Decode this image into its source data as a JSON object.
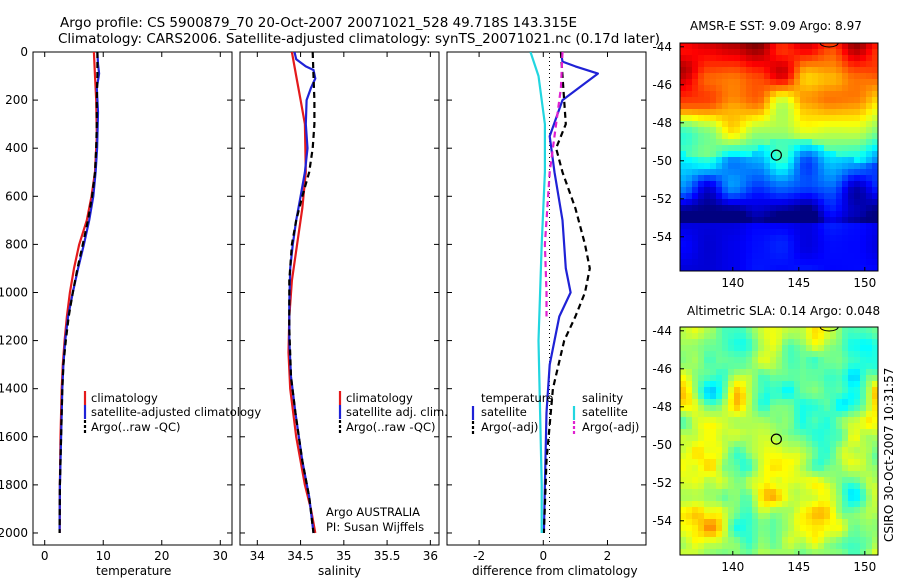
{
  "title_line1": "Argo profile: CS 5900879_70 20-Oct-2007 20071021_528 49.718S 143.315E",
  "title_line2": "Climatology: CARS2006. Satellite-adjusted climatology: synTS_20071021.nc (0.17d later)",
  "credit_line1": "Argo AUSTRALIA",
  "credit_line2": "PI: Susan Wijffels",
  "stamp": "CSIRO 30-Oct-2007 10:31:57",
  "colors": {
    "climatology": "#e41a1c",
    "satellite": "#1f22d6",
    "argo": "#000000",
    "salinity_satellite": "#22d6e0",
    "salinity_argo": "#e020d0"
  },
  "chart_data": [
    {
      "type": "line",
      "xlabel": "temperature",
      "ylabel": "",
      "xlim": [
        -2,
        32
      ],
      "ylim": [
        2050,
        0
      ],
      "xticks": [
        "0",
        "10",
        "20",
        "30"
      ],
      "yticks": [
        "0",
        "200",
        "400",
        "600",
        "800",
        "1000",
        "1200",
        "1400",
        "1600",
        "1800",
        "2000"
      ],
      "legend": [
        "climatology",
        "satellite-adjusted climatology",
        "Argo(..raw -QC)"
      ],
      "series": [
        {
          "name": "climatology",
          "color": "#e41a1c",
          "style": "solid",
          "x": [
            8.4,
            8.6,
            8.8,
            8.9,
            8.6,
            8.0,
            7.2,
            5.9,
            5.0,
            4.3,
            3.8,
            3.4,
            3.1,
            2.9,
            2.7,
            2.6,
            2.55
          ],
          "y": [
            0,
            100,
            200,
            350,
            500,
            600,
            700,
            800,
            900,
            1000,
            1100,
            1200,
            1300,
            1400,
            1600,
            1800,
            2000
          ]
        },
        {
          "name": "satellite-adjusted climatology",
          "color": "#1f22d6",
          "style": "solid",
          "x": [
            9.0,
            9.1,
            9.3,
            8.9,
            9.1,
            8.95,
            8.7,
            8.3,
            7.6,
            6.7,
            5.7,
            4.8,
            4.0,
            3.5,
            3.2,
            3.0,
            2.8,
            2.6,
            2.55
          ],
          "y": [
            0,
            50,
            90,
            150,
            250,
            400,
            500,
            600,
            700,
            800,
            900,
            1000,
            1100,
            1200,
            1300,
            1400,
            1600,
            1800,
            2000
          ]
        },
        {
          "name": "Argo(..raw -QC)",
          "color": "#000000",
          "style": "dashed",
          "x": [
            9.0,
            9.0,
            8.9,
            8.9,
            8.8,
            8.6,
            8.1,
            7.4,
            6.5,
            5.6,
            4.8,
            4.1,
            3.6,
            3.2,
            3.0,
            2.8,
            2.6,
            2.55
          ],
          "y": [
            0,
            100,
            200,
            300,
            400,
            500,
            600,
            700,
            800,
            900,
            1000,
            1100,
            1200,
            1300,
            1400,
            1600,
            1800,
            2000
          ]
        }
      ]
    },
    {
      "type": "line",
      "xlabel": "salinity",
      "ylabel": "",
      "xlim": [
        33.8,
        36.1
      ],
      "ylim": [
        2050,
        0
      ],
      "xticks": [
        "34",
        "34.5",
        "35",
        "35.5",
        "36"
      ],
      "legend": [
        "climatology",
        "satellite adj. clim.",
        "Argo(..raw -QC)"
      ],
      "series": [
        {
          "name": "climatology",
          "color": "#e41a1c",
          "style": "solid",
          "x": [
            34.4,
            34.45,
            34.5,
            34.55,
            34.56,
            34.52,
            34.46,
            34.4,
            34.37,
            34.36,
            34.38,
            34.45,
            34.55,
            34.62,
            34.67
          ],
          "y": [
            0,
            100,
            200,
            300,
            500,
            650,
            800,
            950,
            1100,
            1250,
            1400,
            1600,
            1800,
            1900,
            2000
          ]
        },
        {
          "name": "satellite adj. clim.",
          "color": "#1f22d6",
          "style": "solid",
          "x": [
            34.43,
            34.45,
            34.56,
            34.65,
            34.67,
            34.62,
            34.57,
            34.56,
            34.58,
            34.55,
            34.5,
            34.45,
            34.41,
            34.38,
            34.37,
            34.37,
            34.39,
            34.44,
            34.52,
            34.6,
            34.65
          ],
          "y": [
            0,
            30,
            60,
            75,
            110,
            150,
            200,
            300,
            400,
            500,
            600,
            700,
            800,
            900,
            1050,
            1200,
            1350,
            1500,
            1700,
            1850,
            2000
          ]
        },
        {
          "name": "Argo(..raw -QC)",
          "color": "#000000",
          "style": "dashed",
          "x": [
            34.64,
            34.65,
            34.66,
            34.66,
            34.64,
            34.6,
            34.52,
            34.45,
            34.4,
            34.37,
            34.37,
            34.39,
            34.44,
            34.52,
            34.6,
            34.65
          ],
          "y": [
            0,
            100,
            200,
            300,
            400,
            500,
            600,
            700,
            800,
            950,
            1150,
            1350,
            1500,
            1700,
            1850,
            2000
          ]
        }
      ]
    },
    {
      "type": "line",
      "xlabel": "difference from climatology",
      "ylabel": "",
      "xlim": [
        -3,
        3.2
      ],
      "ylim": [
        2050,
        0
      ],
      "xticks": [
        "-2",
        "0",
        "2"
      ],
      "legend": [
        "temperature",
        "satellite",
        "Argo(-adj)",
        "salinity",
        "satellite",
        "Argo(-adj)"
      ],
      "series": [
        {
          "name": "temperature satellite",
          "color": "#1f22d6",
          "style": "solid",
          "x": [
            0.55,
            0.6,
            1.0,
            1.7,
            1.3,
            0.6,
            0.2,
            0.35,
            0.6,
            0.7,
            0.85,
            0.5,
            0.2,
            0.1,
            0.05,
            0.02
          ],
          "y": [
            0,
            40,
            60,
            90,
            130,
            200,
            350,
            500,
            700,
            900,
            1000,
            1100,
            1300,
            1500,
            1800,
            2000
          ]
        },
        {
          "name": "temperature Argo(-adj)",
          "color": "#000000",
          "style": "dashed",
          "x": [
            0.55,
            0.6,
            0.7,
            0.4,
            0.6,
            1.0,
            1.3,
            1.45,
            1.3,
            1.0,
            0.65,
            0.3,
            0.1,
            0.02
          ],
          "y": [
            0,
            100,
            300,
            400,
            500,
            650,
            800,
            900,
            1000,
            1100,
            1200,
            1400,
            1700,
            2000
          ]
        },
        {
          "name": "salinity satellite",
          "color": "#22d6e0",
          "style": "solid",
          "x": [
            -0.4,
            -0.15,
            0.05,
            0.05,
            -0.05,
            -0.1,
            -0.15,
            -0.1,
            -0.05,
            -0.05
          ],
          "y": [
            0,
            100,
            300,
            500,
            800,
            1000,
            1200,
            1500,
            1800,
            2000
          ]
        },
        {
          "name": "salinity Argo(-adj)",
          "color": "#e020d0",
          "style": "dashed",
          "x": [
            0.6,
            0.55,
            0.4,
            0.2,
            0.05,
            0.1,
            0.1
          ],
          "y": [
            0,
            150,
            300,
            500,
            800,
            1000,
            1100
          ]
        }
      ]
    },
    {
      "type": "heatmap",
      "title": "AMSR-E SST: 9.09 Argo: 8.97",
      "xlim": [
        136,
        151
      ],
      "ylim": [
        -55.8,
        -43.8
      ],
      "xticks": [
        "140",
        "145",
        "150"
      ],
      "yticks": [
        "-44",
        "-46",
        "-48",
        "-50",
        "-52",
        "-54"
      ],
      "marker": {
        "lon": 143.3,
        "lat": -49.7
      }
    },
    {
      "type": "heatmap",
      "title": "Altimetric SLA: 0.14 Argo: 0.048",
      "xlim": [
        136,
        151
      ],
      "ylim": [
        -55.8,
        -43.8
      ],
      "xticks": [
        "140",
        "145",
        "150"
      ],
      "yticks": [
        "-44",
        "-46",
        "-48",
        "-50",
        "-52",
        "-54"
      ],
      "marker": {
        "lon": 143.3,
        "lat": -49.7
      }
    }
  ]
}
